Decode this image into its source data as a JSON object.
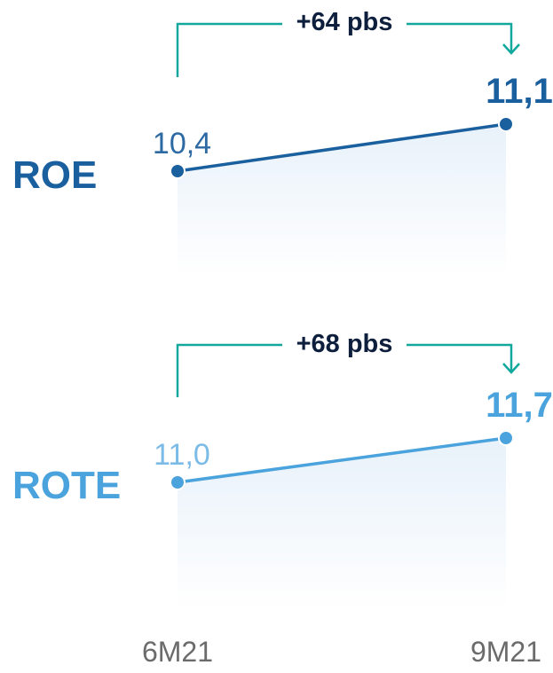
{
  "chart_data": [
    {
      "type": "line",
      "title": "ROE",
      "categories": [
        "6M21",
        "9M21"
      ],
      "values": [
        10.4,
        11.1
      ],
      "value_labels": [
        "10,4",
        "11,1"
      ],
      "change_label": "+64 pbs",
      "color": "#1a5f9e",
      "label_color_start": "#2d6aa3",
      "label_color_end": "#1a5f9e"
    },
    {
      "type": "line",
      "title": "ROTE",
      "categories": [
        "6M21",
        "9M21"
      ],
      "values": [
        11.0,
        11.7
      ],
      "value_labels": [
        "11,0",
        "11,7"
      ],
      "change_label": "+68 pbs",
      "color": "#4aa3dc",
      "label_color_start": "#7cbbe6",
      "label_color_end": "#4aa3dc"
    }
  ],
  "x_axis_labels": [
    "6M21",
    "9M21"
  ],
  "colors": {
    "bracket": "#13a89e",
    "change_text": "#0d1f3c",
    "area_top": "#e8f1fa",
    "axis_label": "#6b6b6b"
  }
}
